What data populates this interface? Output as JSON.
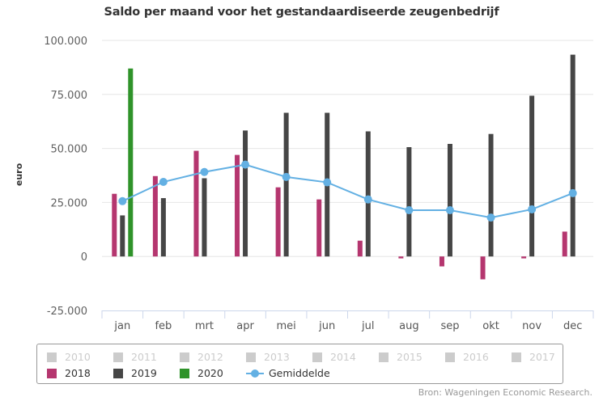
{
  "chart_data": {
    "type": "bar",
    "title": "Saldo per maand voor het gestandaardiseerde zeugenbedrijf",
    "xlabel": "",
    "ylabel": "euro",
    "ylim": [
      -25000,
      100000
    ],
    "yticks": [
      -25000,
      0,
      25000,
      50000,
      75000,
      100000
    ],
    "ytick_labels": [
      "-25.000",
      "0",
      "25.000",
      "50.000",
      "75.000",
      "100.000"
    ],
    "grid": true,
    "legend_position": "bottom",
    "categories": [
      "jan",
      "feb",
      "mrt",
      "apr",
      "mei",
      "jun",
      "jul",
      "aug",
      "sep",
      "okt",
      "nov",
      "dec"
    ],
    "series": [
      {
        "name": "2018",
        "type": "bar",
        "color": "#b5366f",
        "values": [
          29000,
          37200,
          48900,
          47000,
          32000,
          26400,
          7300,
          -900,
          -4600,
          -10600,
          -900,
          11500
        ]
      },
      {
        "name": "2019",
        "type": "bar",
        "color": "#464646",
        "values": [
          19000,
          27000,
          36200,
          58300,
          66500,
          66500,
          57900,
          50600,
          52100,
          56700,
          74400,
          93400
        ]
      },
      {
        "name": "2020",
        "type": "bar",
        "color": "#2f932a",
        "values": [
          87000,
          null,
          null,
          null,
          null,
          null,
          null,
          null,
          null,
          null,
          null,
          null
        ]
      },
      {
        "name": "Gemiddelde",
        "type": "line",
        "color": "#63b0e3",
        "values": [
          25600,
          34500,
          39100,
          42500,
          36800,
          34300,
          26400,
          21400,
          21400,
          18000,
          21800,
          29300
        ]
      }
    ],
    "hidden_series": [
      "2010",
      "2011",
      "2012",
      "2013",
      "2014",
      "2015",
      "2016",
      "2017"
    ]
  },
  "legend": {
    "hidden_items": [
      "2010",
      "2011",
      "2012",
      "2013",
      "2014",
      "2015",
      "2016",
      "2017"
    ],
    "visible_items": [
      {
        "label": "2018",
        "color": "#b5366f",
        "kind": "bar"
      },
      {
        "label": "2019",
        "color": "#464646",
        "kind": "bar"
      },
      {
        "label": "2020",
        "color": "#2f932a",
        "kind": "bar"
      },
      {
        "label": "Gemiddelde",
        "color": "#63b0e3",
        "kind": "line"
      }
    ]
  },
  "source": "Bron: Wageningen Economic Research."
}
